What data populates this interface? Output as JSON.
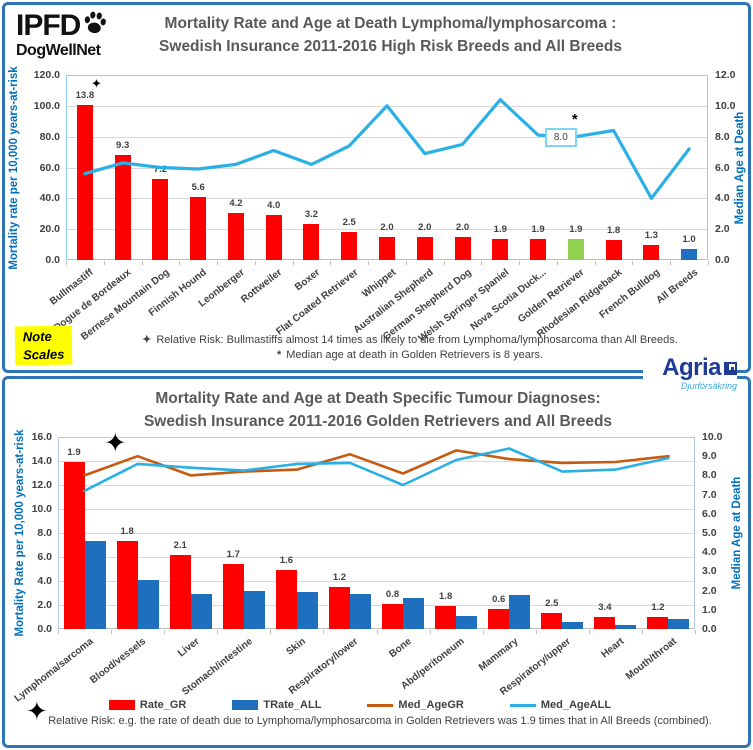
{
  "top_panel": {
    "logo": {
      "name": "IPFD",
      "sub": "DogWellNet"
    },
    "title_line1": "Mortality Rate and Age at Death Lymphoma/lymphosarcoma :",
    "title_line2": "Swedish Insurance 2011-2016 High Risk Breeds and All Breeds",
    "note_line1": "Note",
    "note_line2": "Scales",
    "footnote1_marker": "✦",
    "footnote1": "Relative Risk: Bullmastiffs almost 14 times as likely to die from Lymphoma/lymphosarcoma than All Breeds.",
    "footnote2_marker": "*",
    "footnote2": "Median age at death in Golden Retrievers is 8 years."
  },
  "bottom_panel": {
    "agria": {
      "name": "Agria",
      "sub": "Djurförsäkring"
    },
    "title_line1": "Mortality Rate and Age at Death Specific Tumour Diagnoses:",
    "title_line2": "Swedish Insurance 2011-2016 Golden Retrievers and All Breeds",
    "footnote_marker": "✦",
    "footnote": "Relative Risk: e.g. the rate of death due to Lymphoma/lymphosarcoma in Golden Retrievers was 1.9 times that in All Breeds (combined)."
  },
  "chart_data": [
    {
      "type": "bar",
      "title": "Mortality Rate and Age at Death Lymphoma/lymphosarcoma : Swedish Insurance 2011-2016 High Risk Breeds and All Breeds",
      "ylabel_left": "Mortality rate per 10,000 years-at-risk",
      "ylabel_right": "Median Age at Death",
      "ylim_left": [
        0,
        120
      ],
      "ytick_step_left": 20,
      "ylim_right": [
        0,
        12
      ],
      "ytick_step_right": 2,
      "grid": true,
      "categories": [
        "Bullmastiff",
        "Dogue de Bordeaux",
        "Bernese Mountain Dog",
        "Finnish Hound",
        "Leonberger",
        "Rottweiler",
        "Boxer",
        "Flat Coated Retriever",
        "Whippet",
        "Australian Shepherd",
        "German Shepherd Dog",
        "Welsh Springer Spaniel",
        "Nova Scotia Duck...",
        "Golden Retriever",
        "Rhodesian Ridgeback",
        "French Bulldog",
        "All Breeds"
      ],
      "bars": {
        "name": "Mortality rate per 10,000 years-at-risk",
        "values": [
          100.7,
          67.9,
          52.6,
          40.9,
          30.7,
          29.2,
          23.4,
          18.3,
          14.6,
          14.6,
          14.6,
          13.9,
          13.9,
          13.9,
          13.1,
          9.5,
          7.3
        ],
        "relative_risk_labels": [
          "13.8",
          "9.3",
          "7.2",
          "5.6",
          "4.2",
          "4.0",
          "3.2",
          "2.5",
          "2.0",
          "2.0",
          "2.0",
          "1.9",
          "1.9",
          "1.9",
          "1.8",
          "1.3",
          "1.0"
        ],
        "default_color": "#FF0000",
        "color_overrides": {
          "13": "#92D050",
          "16": "#1F6FBF"
        }
      },
      "line": {
        "name": "Median Age at Death",
        "color": "#2BB0E6",
        "axis": "right",
        "values": [
          5.6,
          6.3,
          6.0,
          5.9,
          6.2,
          7.1,
          6.2,
          7.4,
          10.0,
          6.9,
          7.5,
          10.4,
          8.1,
          8.0,
          8.4,
          4.0,
          7.2
        ]
      },
      "annotations": {
        "line_point_label": {
          "text": "8.0",
          "category_index": 13
        },
        "asterisk": "*",
        "star": "✦"
      }
    },
    {
      "type": "bar",
      "title": "Mortality Rate and Age at Death Specific Tumour Diagnoses: Swedish Insurance 2011-2016 Golden Retrievers and All Breeds",
      "ylabel_left": "Mortality Rate per 10,000 years-at-risk",
      "ylabel_right": "Median Age at Death",
      "ylim_left": [
        0,
        16
      ],
      "ytick_step_left": 2,
      "ylim_right": [
        0,
        10
      ],
      "ytick_step_right": 1,
      "grid": true,
      "legend_position": "bottom",
      "categories": [
        "Lymphoma/sarcoma",
        "Blood/vessels",
        "Liver",
        "Stomach/intestine",
        "Skin",
        "Respiratory/lower",
        "Bone",
        "Abd/peritoneum",
        "Mammary",
        "Respiratory/upper",
        "Heart",
        "Mouth/throat"
      ],
      "bar_series": [
        {
          "name": "Rate_GR",
          "color": "#FF0000",
          "values": [
            13.9,
            7.3,
            6.2,
            5.4,
            4.9,
            3.5,
            2.05,
            1.9,
            1.7,
            1.35,
            1.0,
            1.0
          ]
        },
        {
          "name": "TRate_ALL",
          "color": "#1F6FBF",
          "values": [
            7.3,
            4.05,
            2.95,
            3.2,
            3.05,
            2.95,
            2.55,
            1.05,
            2.85,
            0.55,
            0.3,
            0.85
          ]
        }
      ],
      "relative_risk_labels": [
        "1.9",
        "1.8",
        "2.1",
        "1.7",
        "1.6",
        "1.2",
        "0.8",
        "1.8",
        "0.6",
        "2.5",
        "3.4",
        "1.2"
      ],
      "line_series": [
        {
          "name": "Med_AgeGR",
          "color": "#C55A11",
          "axis": "right",
          "values": [
            8.0,
            9.0,
            8.0,
            8.2,
            8.3,
            9.1,
            8.1,
            9.3,
            8.85,
            8.65,
            8.7,
            9.0
          ]
        },
        {
          "name": "Med_AgeALL",
          "color": "#2BB0E6",
          "axis": "right",
          "values": [
            7.2,
            8.6,
            8.4,
            8.25,
            8.6,
            8.65,
            7.5,
            8.8,
            9.4,
            8.2,
            8.3,
            8.9
          ]
        }
      ],
      "annotations": {
        "star": "✦"
      }
    }
  ]
}
